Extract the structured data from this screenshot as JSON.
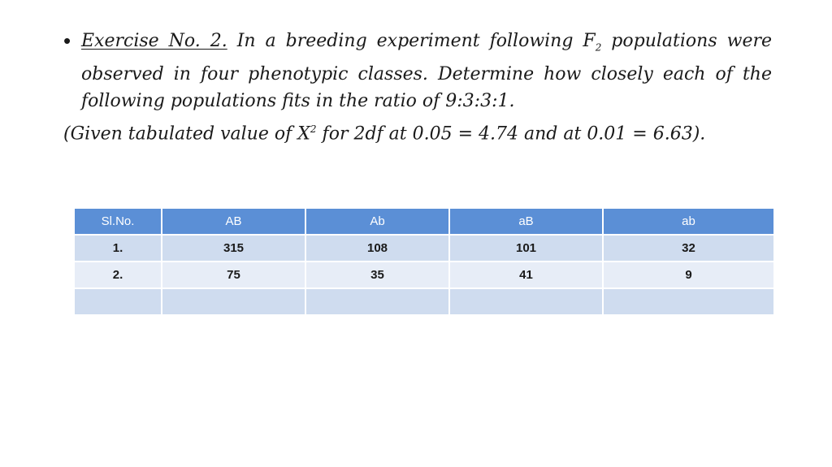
{
  "exercise": {
    "bullet_symbol": "•",
    "label": "Exercise No. 2.",
    "text_before_sub": " In a breeding experiment following F",
    "subscript": "2",
    "text_after_sub": " populations were observed in four phenotypic classes. Determine how closely each of the following populations fits in the ratio of 9:3:3:1."
  },
  "given": {
    "text_before_sup": "(Given tabulated value of X",
    "superscript": "2",
    "text_after_sup": " for 2df at 0.05 = 4.74 and at 0.01 = 6.63)."
  },
  "table": {
    "headers": [
      "Sl.No.",
      "AB",
      "Ab",
      "aB",
      "ab"
    ],
    "rows": [
      [
        "1.",
        "315",
        "108",
        "101",
        "32"
      ],
      [
        "2.",
        "75",
        "35",
        "41",
        "9"
      ],
      [
        "",
        "",
        "",
        "",
        ""
      ]
    ]
  },
  "colors": {
    "header_bg": "#5b8fd6",
    "row_dark": "#cfdcef",
    "row_light": "#e7edf7"
  }
}
